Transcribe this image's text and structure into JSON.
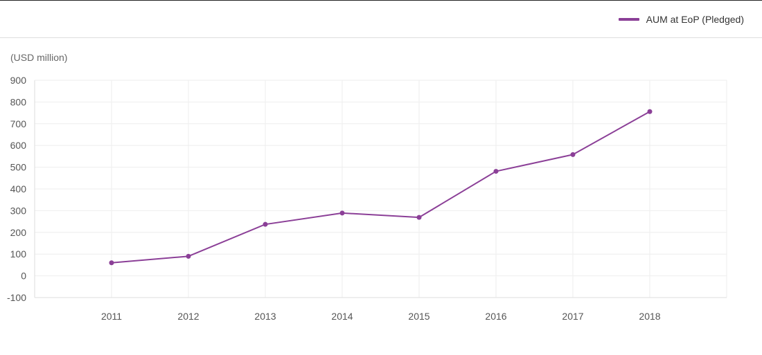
{
  "legend": {
    "label": "AUM at EoP (Pledged)",
    "color": "#8b3f97"
  },
  "chart_data": {
    "type": "line",
    "unit_label": "(USD million)",
    "categories": [
      "2011",
      "2012",
      "2013",
      "2014",
      "2015",
      "2016",
      "2017",
      "2018"
    ],
    "series": [
      {
        "name": "AUM at EoP (Pledged)",
        "values": [
          60,
          90,
          237,
          289,
          269,
          481,
          558,
          756
        ],
        "color": "#8b3f97"
      }
    ],
    "ylim": [
      -100,
      900
    ],
    "yticks": [
      -100,
      0,
      100,
      200,
      300,
      400,
      500,
      600,
      700,
      800,
      900
    ],
    "grid": true,
    "legend_position": "top-right",
    "xlabel": "",
    "ylabel": ""
  }
}
